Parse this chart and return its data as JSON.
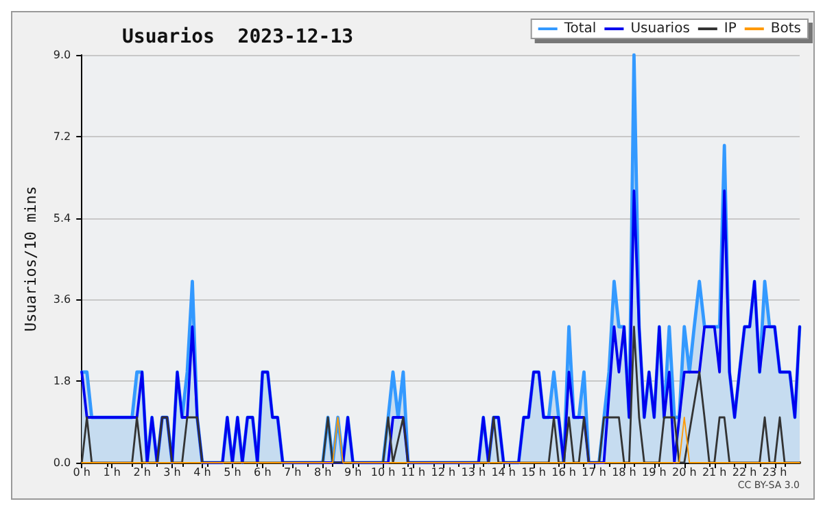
{
  "chart_data": {
    "type": "line",
    "title": "Usuarios  2023-12-13",
    "ylabel": "Usuarios/10 mins",
    "xlim": [
      0,
      23.83
    ],
    "ylim": [
      0,
      9
    ],
    "xticks": [
      {
        "value": 0,
        "label": "0 h"
      },
      {
        "value": 1,
        "label": "1 h"
      },
      {
        "value": 2,
        "label": "2 h"
      },
      {
        "value": 3,
        "label": "3 h"
      },
      {
        "value": 4,
        "label": "4 h"
      },
      {
        "value": 5,
        "label": "5 h"
      },
      {
        "value": 6,
        "label": "6 h"
      },
      {
        "value": 7,
        "label": "7 h"
      },
      {
        "value": 8,
        "label": "8 h"
      },
      {
        "value": 9,
        "label": "9 h"
      },
      {
        "value": 10,
        "label": "10 h"
      },
      {
        "value": 11,
        "label": "11 h"
      },
      {
        "value": 12,
        "label": "12 h"
      },
      {
        "value": 13,
        "label": "13 h"
      },
      {
        "value": 14,
        "label": "14 h"
      },
      {
        "value": 15,
        "label": "15 h"
      },
      {
        "value": 16,
        "label": "16 h"
      },
      {
        "value": 17,
        "label": "17 h"
      },
      {
        "value": 18,
        "label": "18 h"
      },
      {
        "value": 19,
        "label": "19 h"
      },
      {
        "value": 20,
        "label": "20 h"
      },
      {
        "value": 21,
        "label": "21 h"
      },
      {
        "value": 22,
        "label": "22 h"
      },
      {
        "value": 23,
        "label": "23 h"
      }
    ],
    "yticks": [
      {
        "value": 0,
        "label": "0.0"
      },
      {
        "value": 1.8,
        "label": "1.8"
      },
      {
        "value": 3.6,
        "label": "3.6"
      },
      {
        "value": 5.4,
        "label": "5.4"
      },
      {
        "value": 7.2,
        "label": "7.2"
      },
      {
        "value": 9,
        "label": "9.0"
      }
    ],
    "grid": "y",
    "legend": "top right",
    "marker": "none",
    "line_style": "solid",
    "annotations": [
      "CC BY-SA 3.0"
    ],
    "series": [
      {
        "name": "Total",
        "type": "area",
        "color": "#3399ff",
        "x": [
          0,
          0.17,
          0.33,
          1.67,
          1.83,
          2,
          2.17,
          2.33,
          2.5,
          2.67,
          2.83,
          3,
          3.17,
          3.33,
          3.5,
          3.67,
          3.83,
          4,
          4.67,
          4.83,
          5,
          5.17,
          5.33,
          5.5,
          5.67,
          5.83,
          6,
          6.17,
          6.33,
          6.5,
          6.67,
          8,
          8.17,
          8.33,
          8.5,
          8.67,
          8.83,
          9,
          10,
          10.17,
          10.33,
          10.5,
          10.67,
          10.83,
          13.17,
          13.33,
          13.5,
          13.67,
          13.83,
          14,
          14.5,
          14.67,
          14.83,
          15,
          15.17,
          15.33,
          15.5,
          15.67,
          15.83,
          16,
          16.17,
          16.33,
          16.5,
          16.67,
          16.83,
          17.17,
          17.5,
          17.67,
          17.83,
          18,
          18.17,
          18.33,
          18.5,
          18.67,
          18.83,
          19,
          19.17,
          19.33,
          19.5,
          19.67,
          19.83,
          20,
          20.17,
          20.33,
          20.5,
          20.67,
          21,
          21.17,
          21.33,
          21.5,
          21.67,
          21.83,
          22,
          22.17,
          22.33,
          22.5,
          22.67,
          22.83,
          23,
          23.17,
          23.5,
          23.67,
          23.83
        ],
        "values": [
          2,
          2,
          1,
          1,
          2,
          2,
          0,
          1,
          0,
          1,
          1,
          0,
          2,
          1,
          2,
          4,
          1,
          0,
          0,
          1,
          0,
          1,
          0,
          1,
          1,
          0,
          2,
          2,
          1,
          1,
          0,
          0,
          1,
          0,
          1,
          0,
          1,
          0,
          0,
          1,
          2,
          1,
          2,
          0,
          0,
          1,
          0,
          1,
          1,
          0,
          0,
          1,
          1,
          2,
          2,
          1,
          1,
          2,
          1,
          0,
          3,
          1,
          1,
          2,
          0,
          0,
          2,
          4,
          3,
          3,
          1,
          9,
          3,
          1,
          2,
          1,
          3,
          1,
          3,
          1,
          1,
          3,
          2,
          3,
          4,
          3,
          3,
          3,
          7,
          2,
          1,
          2,
          3,
          3,
          4,
          2,
          4,
          3,
          3,
          2,
          2,
          1,
          3
        ]
      },
      {
        "name": "Usuarios",
        "color": "#0000ee",
        "x": [
          0,
          0.17,
          1.83,
          2,
          2.17,
          2.33,
          2.5,
          2.67,
          2.83,
          3,
          3.17,
          3.33,
          3.5,
          3.67,
          3.83,
          4,
          4.67,
          4.83,
          5,
          5.17,
          5.33,
          5.5,
          5.67,
          5.83,
          6,
          6.17,
          6.33,
          6.5,
          6.67,
          8.67,
          8.83,
          9,
          10.17,
          10.33,
          10.67,
          10.83,
          13.17,
          13.33,
          13.5,
          13.67,
          13.83,
          14,
          14.5,
          14.67,
          14.83,
          15,
          15.17,
          15.33,
          15.83,
          16,
          16.17,
          16.33,
          16.67,
          16.83,
          17.33,
          17.67,
          17.83,
          18,
          18.17,
          18.33,
          18.5,
          18.67,
          18.83,
          19,
          19.17,
          19.33,
          19.5,
          19.67,
          20,
          20.5,
          20.67,
          21,
          21.17,
          21.33,
          21.5,
          21.67,
          21.83,
          22,
          22.17,
          22.33,
          22.5,
          22.67,
          23,
          23.17,
          23.5,
          23.67,
          23.83
        ],
        "values": [
          2,
          1,
          1,
          2,
          0,
          1,
          0,
          1,
          1,
          0,
          2,
          1,
          1,
          3,
          1,
          0,
          0,
          1,
          0,
          1,
          0,
          1,
          1,
          0,
          2,
          2,
          1,
          1,
          0,
          0,
          1,
          0,
          0,
          1,
          1,
          0,
          0,
          1,
          0,
          1,
          1,
          0,
          0,
          1,
          1,
          2,
          2,
          1,
          1,
          0,
          2,
          1,
          1,
          0,
          0,
          3,
          2,
          3,
          1,
          6,
          3,
          1,
          2,
          1,
          3,
          1,
          2,
          0,
          2,
          2,
          3,
          3,
          2,
          6,
          2,
          1,
          2,
          3,
          3,
          4,
          2,
          3,
          3,
          2,
          2,
          1,
          3
        ]
      },
      {
        "name": "IP",
        "color": "#333333",
        "x": [
          0,
          0.17,
          0.33,
          1.67,
          1.83,
          2,
          2.5,
          2.67,
          2.83,
          3,
          3.33,
          3.5,
          3.83,
          4,
          8,
          8.17,
          8.33,
          10,
          10.17,
          10.33,
          10.67,
          10.83,
          13.5,
          13.67,
          13.83,
          15.5,
          15.67,
          15.83,
          16,
          16.17,
          16.33,
          16.5,
          16.67,
          16.83,
          17.17,
          17.33,
          17.83,
          18,
          18.17,
          18.33,
          18.5,
          18.67,
          19.17,
          19.33,
          19.67,
          19.83,
          20,
          20.5,
          20.67,
          20.83,
          21,
          21.17,
          21.33,
          21.5,
          22.5,
          22.67,
          22.83,
          23,
          23.17,
          23.33,
          23.83
        ],
        "values": [
          0,
          1,
          0,
          0,
          1,
          0,
          0,
          1,
          1,
          0,
          0,
          1,
          1,
          0,
          0,
          1,
          0,
          0,
          1,
          0,
          1,
          0,
          0,
          1,
          0,
          0,
          1,
          0,
          0,
          1,
          0,
          0,
          1,
          0,
          0,
          1,
          1,
          0,
          0,
          3,
          1,
          0,
          0,
          1,
          1,
          0,
          0,
          2,
          1,
          0,
          0,
          1,
          1,
          0,
          0,
          1,
          0,
          0,
          1,
          0,
          0
        ]
      },
      {
        "name": "Bots",
        "color": "#ff9900",
        "x": [
          0,
          8.33,
          8.5,
          8.67,
          19.83,
          20,
          20.17,
          23.83
        ],
        "values": [
          0,
          0,
          1,
          0,
          0,
          1,
          0,
          0
        ]
      }
    ]
  }
}
